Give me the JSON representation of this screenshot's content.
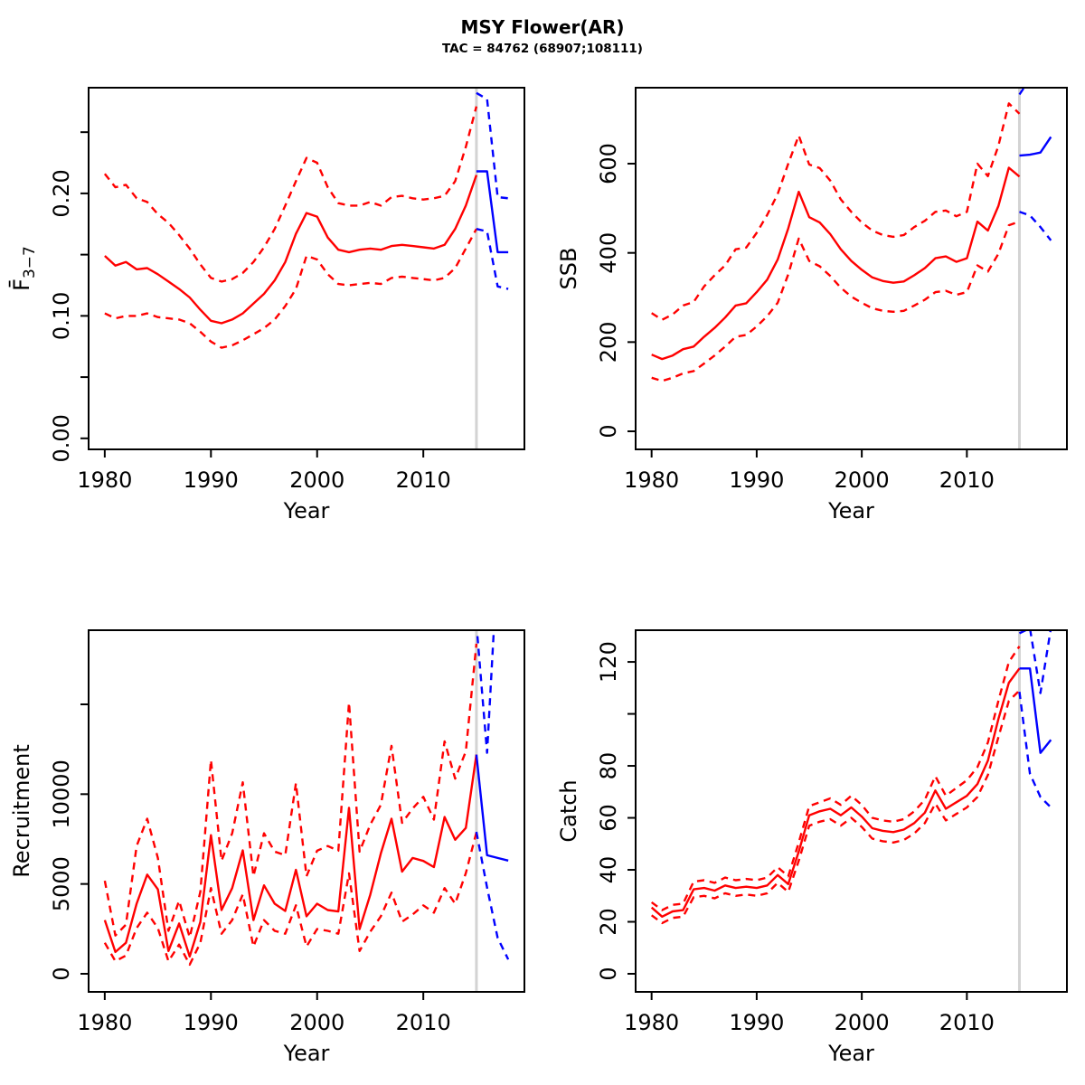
{
  "header": {
    "title": "MSY Flower(AR)",
    "subtitle": "TAC = 84762 (68907;108111)"
  },
  "colors": {
    "historical": "#ff0000",
    "forecast": "#0000ff",
    "vline": "#d3d3d3",
    "axis": "#000000"
  },
  "chart_data": [
    {
      "id": "fbar",
      "type": "line",
      "ylabel_main": "F̄",
      "ylabel_sub": "3−7",
      "xlabel": "Year",
      "xlim": [
        1978.48,
        2019.52
      ],
      "ylim": [
        -0.009,
        0.2863
      ],
      "xticks": [
        {
          "v": 1980,
          "label": "1980"
        },
        {
          "v": 1990,
          "label": "1990"
        },
        {
          "v": 2000,
          "label": "2000"
        },
        {
          "v": 2010,
          "label": "2010"
        }
      ],
      "yticks": [
        {
          "v": 0,
          "label": "0.00"
        },
        {
          "v": 0.05,
          "label": ""
        },
        {
          "v": 0.1,
          "label": "0.10"
        },
        {
          "v": 0.15,
          "label": ""
        },
        {
          "v": 0.2,
          "label": "0.20"
        },
        {
          "v": 0.25,
          "label": ""
        }
      ],
      "vline": 2015,
      "series": [
        {
          "name": "upper-ci",
          "role": "historical",
          "style": "dashed",
          "x_start": 1980,
          "values": [
            0.216,
            0.205,
            0.207,
            0.196,
            0.193,
            0.183,
            0.176,
            0.166,
            0.155,
            0.142,
            0.131,
            0.128,
            0.13,
            0.135,
            0.144,
            0.156,
            0.171,
            0.19,
            0.21,
            0.229,
            0.225,
            0.205,
            0.192,
            0.19,
            0.19,
            0.193,
            0.19,
            0.197,
            0.198,
            0.196,
            0.195,
            0.196,
            0.198,
            0.21,
            0.238,
            0.271
          ]
        },
        {
          "name": "lower-ci",
          "role": "historical",
          "style": "dashed",
          "x_start": 1980,
          "values": [
            0.102,
            0.098,
            0.1,
            0.1,
            0.102,
            0.099,
            0.098,
            0.097,
            0.094,
            0.087,
            0.079,
            0.074,
            0.076,
            0.08,
            0.085,
            0.09,
            0.097,
            0.108,
            0.122,
            0.149,
            0.146,
            0.134,
            0.126,
            0.125,
            0.126,
            0.127,
            0.126,
            0.131,
            0.132,
            0.131,
            0.13,
            0.129,
            0.131,
            0.139,
            0.155,
            0.171
          ]
        },
        {
          "name": "median",
          "role": "historical",
          "style": "solid",
          "x_start": 1980,
          "values": [
            0.149,
            0.141,
            0.144,
            0.138,
            0.139,
            0.134,
            0.128,
            0.122,
            0.115,
            0.105,
            0.096,
            0.094,
            0.097,
            0.102,
            0.11,
            0.118,
            0.129,
            0.144,
            0.167,
            0.184,
            0.181,
            0.164,
            0.154,
            0.152,
            0.154,
            0.155,
            0.154,
            0.157,
            0.158,
            0.157,
            0.156,
            0.155,
            0.158,
            0.171,
            0.19,
            0.215
          ]
        },
        {
          "name": "forecast-upper",
          "role": "forecast",
          "style": "dashed",
          "x_start": 2015,
          "values": [
            0.282,
            0.277,
            0.197,
            0.196
          ]
        },
        {
          "name": "forecast-lower",
          "role": "forecast",
          "style": "dashed",
          "x_start": 2015,
          "values": [
            0.171,
            0.169,
            0.124,
            0.122
          ]
        },
        {
          "name": "forecast-median",
          "role": "forecast",
          "style": "solid",
          "x_start": 2015,
          "values": [
            0.218,
            0.218,
            0.152,
            0.152
          ]
        }
      ]
    },
    {
      "id": "ssb",
      "type": "line",
      "ylabel_main": "SSB",
      "ylabel_sub": "",
      "xlabel": "Year",
      "xlim": [
        1978.48,
        2019.52
      ],
      "ylim": [
        -40.5,
        770.3
      ],
      "xticks": [
        {
          "v": 1980,
          "label": "1980"
        },
        {
          "v": 1990,
          "label": "1990"
        },
        {
          "v": 2000,
          "label": "2000"
        },
        {
          "v": 2010,
          "label": "2010"
        }
      ],
      "yticks": [
        {
          "v": 0,
          "label": "0"
        },
        {
          "v": 200,
          "label": "200"
        },
        {
          "v": 400,
          "label": "400"
        },
        {
          "v": 600,
          "label": "600"
        }
      ],
      "vline": 2015,
      "series": [
        {
          "name": "upper-ci",
          "role": "historical",
          "style": "dashed",
          "x_start": 1980,
          "values": [
            265,
            250,
            262,
            282,
            290,
            325,
            350,
            372,
            408,
            412,
            445,
            485,
            532,
            600,
            663,
            598,
            590,
            562,
            520,
            492,
            468,
            450,
            440,
            436,
            440,
            458,
            472,
            492,
            495,
            482,
            492,
            600,
            572,
            640,
            735,
            712
          ]
        },
        {
          "name": "lower-ci",
          "role": "historical",
          "style": "dashed",
          "x_start": 1980,
          "values": [
            120,
            113,
            120,
            130,
            135,
            152,
            170,
            190,
            212,
            216,
            235,
            258,
            288,
            352,
            432,
            382,
            370,
            348,
            322,
            302,
            288,
            276,
            270,
            268,
            270,
            282,
            295,
            312,
            315,
            306,
            312,
            372,
            358,
            398,
            462,
            470
          ]
        },
        {
          "name": "median",
          "role": "historical",
          "style": "solid",
          "x_start": 1980,
          "values": [
            172,
            162,
            170,
            184,
            190,
            212,
            232,
            255,
            282,
            287,
            312,
            340,
            385,
            455,
            537,
            480,
            468,
            442,
            408,
            382,
            362,
            345,
            337,
            333,
            336,
            350,
            366,
            388,
            392,
            380,
            388,
            470,
            450,
            505,
            591,
            571
          ]
        },
        {
          "name": "forecast-upper",
          "role": "forecast",
          "style": "dashed",
          "x_start": 2015,
          "values": [
            755,
            790,
            810,
            820
          ]
        },
        {
          "name": "forecast-lower",
          "role": "forecast",
          "style": "dashed",
          "x_start": 2015,
          "values": [
            492,
            484,
            458,
            428
          ]
        },
        {
          "name": "forecast-median",
          "role": "forecast",
          "style": "solid",
          "x_start": 2015,
          "values": [
            618,
            620,
            625,
            660
          ]
        }
      ]
    },
    {
      "id": "recruitment",
      "type": "line",
      "ylabel_main": "Recruitment",
      "ylabel_sub": "",
      "xlabel": "Year",
      "xlim": [
        1978.48,
        2019.52
      ],
      "ylim": [
        -1007,
        19127
      ],
      "xticks": [
        {
          "v": 1980,
          "label": "1980"
        },
        {
          "v": 1990,
          "label": "1990"
        },
        {
          "v": 2000,
          "label": "2000"
        },
        {
          "v": 2010,
          "label": "2010"
        }
      ],
      "yticks": [
        {
          "v": 0,
          "label": "0"
        },
        {
          "v": 5000,
          "label": "5000"
        },
        {
          "v": 10000,
          "label": "10000"
        },
        {
          "v": 15000,
          "label": ""
        }
      ],
      "vline": 2015,
      "series": [
        {
          "name": "upper-ci",
          "role": "historical",
          "style": "dashed",
          "x_start": 1980,
          "values": [
            5180,
            2130,
            2740,
            7110,
            8630,
            6450,
            2390,
            4060,
            2030,
            4570,
            11900,
            6290,
            7820,
            10660,
            5430,
            7820,
            6800,
            6600,
            10610,
            5430,
            6850,
            7110,
            6850,
            15100,
            6800,
            8300,
            9400,
            12690,
            8400,
            9200,
            9850,
            8580,
            12940,
            10860,
            12380,
            18370
          ]
        },
        {
          "name": "lower-ci",
          "role": "historical",
          "style": "dashed",
          "x_start": 1980,
          "values": [
            1725,
            700,
            1015,
            2540,
            3400,
            2540,
            700,
            1625,
            510,
            1725,
            4770,
            2230,
            2990,
            4420,
            1520,
            2990,
            2390,
            2230,
            3810,
            1520,
            2490,
            2390,
            2230,
            5590,
            1270,
            2340,
            3200,
            4520,
            2900,
            3300,
            3810,
            3400,
            4770,
            3900,
            5600,
            7870
          ]
        },
        {
          "name": "median",
          "role": "historical",
          "style": "solid",
          "x_start": 1980,
          "values": [
            2990,
            1215,
            1725,
            3900,
            5520,
            4700,
            1270,
            2800,
            960,
            2890,
            7715,
            3550,
            4770,
            6870,
            2990,
            4920,
            3900,
            3500,
            5790,
            3200,
            3900,
            3550,
            3470,
            9240,
            2490,
            4400,
            6700,
            8630,
            5690,
            6450,
            6280,
            5940,
            8730,
            7460,
            8120,
            12200
          ]
        },
        {
          "name": "forecast-upper",
          "role": "forecast",
          "style": "dashed",
          "x_start": 2015,
          "values": [
            19500,
            12300,
            23000,
            24000
          ]
        },
        {
          "name": "forecast-lower",
          "role": "forecast",
          "style": "dashed",
          "x_start": 2015,
          "values": [
            7900,
            4800,
            2000,
            800
          ]
        },
        {
          "name": "forecast-median",
          "role": "forecast",
          "style": "solid",
          "x_start": 2015,
          "values": [
            12200,
            6600,
            6450,
            6300
          ]
        }
      ]
    },
    {
      "id": "catch",
      "type": "line",
      "ylabel_main": "Catch",
      "ylabel_sub": "",
      "xlabel": "Year",
      "xlim": [
        1978.48,
        2019.52
      ],
      "ylim": [
        -6.96,
        132.2
      ],
      "xticks": [
        {
          "v": 1980,
          "label": "1980"
        },
        {
          "v": 1990,
          "label": "1990"
        },
        {
          "v": 2000,
          "label": "2000"
        },
        {
          "v": 2010,
          "label": "2010"
        }
      ],
      "yticks": [
        {
          "v": 0,
          "label": "0"
        },
        {
          "v": 20,
          "label": "20"
        },
        {
          "v": 40,
          "label": "40"
        },
        {
          "v": 60,
          "label": "60"
        },
        {
          "v": 80,
          "label": "80"
        },
        {
          "v": 100,
          "label": ""
        },
        {
          "v": 120,
          "label": "120"
        }
      ],
      "vline": 2015,
      "series": [
        {
          "name": "upper-ci",
          "role": "historical",
          "style": "dashed",
          "x_start": 1980,
          "values": [
            27.5,
            24.5,
            26.5,
            27,
            35.5,
            36,
            35,
            37,
            36,
            36.5,
            36,
            37,
            41,
            37.5,
            50.5,
            64.5,
            66,
            67.5,
            65,
            68.5,
            65,
            60,
            59,
            58.5,
            59.5,
            62.5,
            67,
            76,
            68.5,
            71.5,
            74.5,
            79.5,
            89,
            105,
            120,
            126
          ]
        },
        {
          "name": "lower-ci",
          "role": "historical",
          "style": "dashed",
          "x_start": 1980,
          "values": [
            22.5,
            19.5,
            21.5,
            22,
            29.5,
            30,
            29,
            31,
            30,
            30.5,
            30,
            31,
            35,
            31.5,
            43.5,
            57,
            58.5,
            59.5,
            57,
            60,
            56.5,
            52,
            51,
            50.5,
            51.5,
            54,
            58,
            65.5,
            59,
            61.5,
            64,
            68,
            76.5,
            91,
            105,
            109
          ]
        },
        {
          "name": "median",
          "role": "historical",
          "style": "solid",
          "x_start": 1980,
          "values": [
            25.5,
            22,
            24,
            24.5,
            32.5,
            33,
            32,
            34,
            33,
            33.5,
            33,
            34,
            38,
            34.5,
            47,
            61,
            62.5,
            63.5,
            61,
            64,
            60.5,
            56,
            55,
            54.5,
            55.5,
            58,
            62,
            70.5,
            63.5,
            66,
            68.5,
            73,
            82,
            98,
            112,
            117.5
          ]
        },
        {
          "name": "forecast-upper",
          "role": "forecast",
          "style": "dashed",
          "x_start": 2015,
          "values": [
            131,
            133,
            108,
            133
          ]
        },
        {
          "name": "forecast-lower",
          "role": "forecast",
          "style": "dashed",
          "x_start": 2015,
          "values": [
            108.5,
            77,
            68,
            64
          ]
        },
        {
          "name": "forecast-median",
          "role": "forecast",
          "style": "solid",
          "x_start": 2015,
          "values": [
            117.5,
            117.5,
            85,
            90
          ]
        }
      ]
    }
  ]
}
